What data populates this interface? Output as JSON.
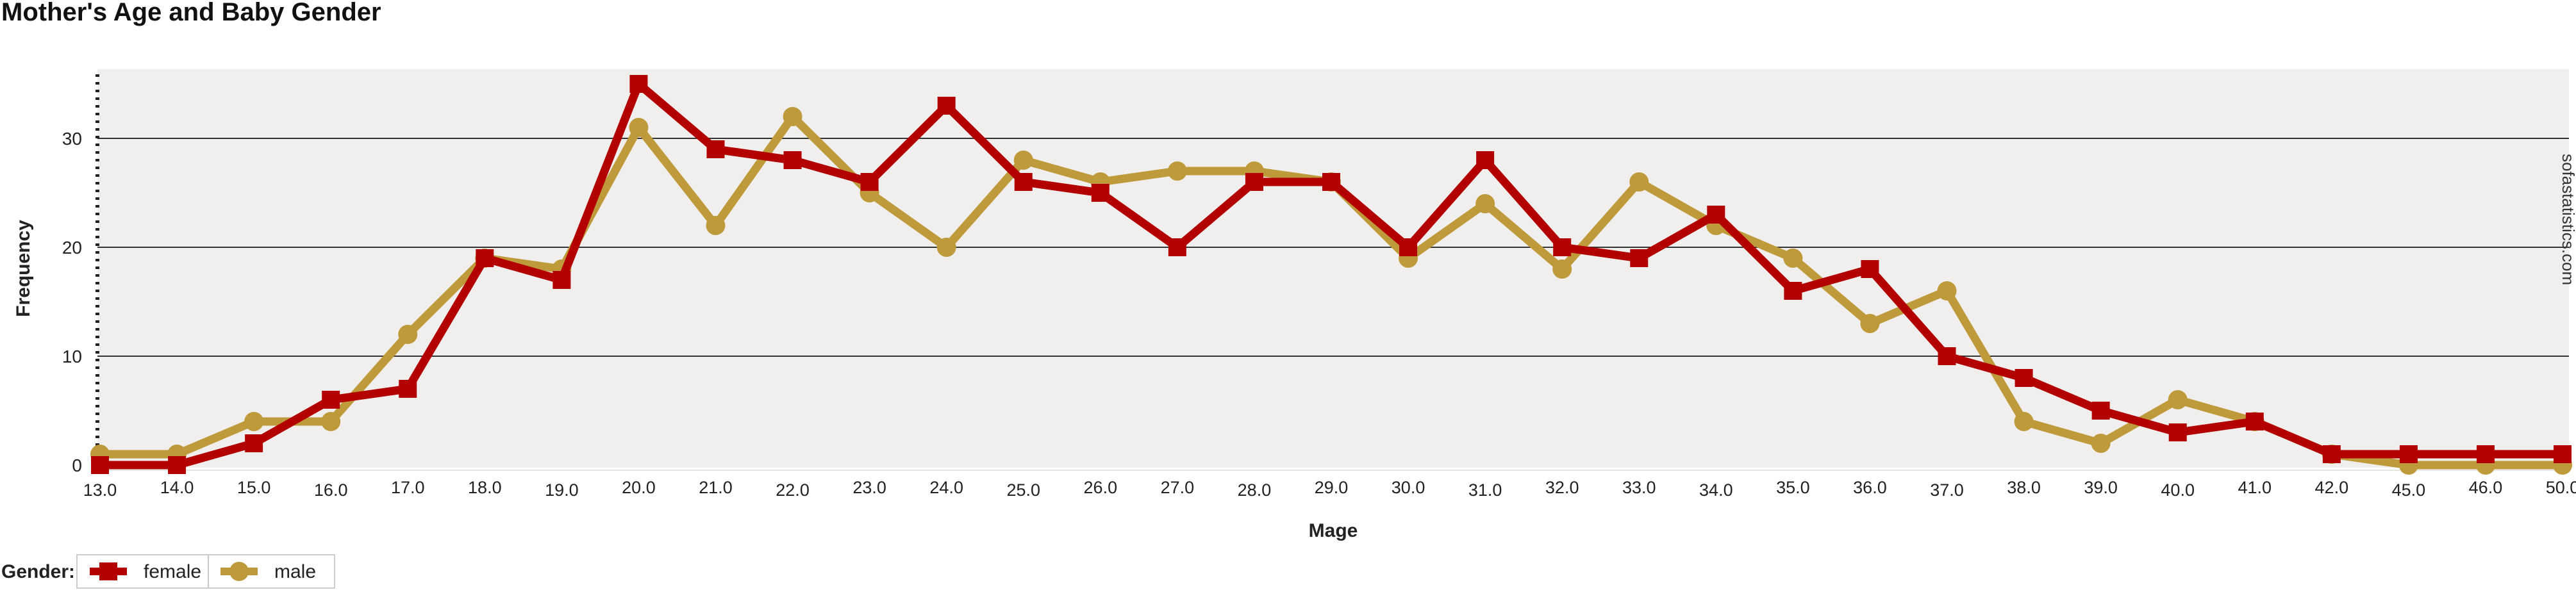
{
  "chart_data": {
    "type": "line",
    "title": "Mother's Age and Baby Gender",
    "xlabel": "Mage",
    "ylabel": "Frequency",
    "categories": [
      "13.0",
      "14.0",
      "15.0",
      "16.0",
      "17.0",
      "18.0",
      "19.0",
      "20.0",
      "21.0",
      "22.0",
      "23.0",
      "24.0",
      "25.0",
      "26.0",
      "27.0",
      "28.0",
      "29.0",
      "30.0",
      "31.0",
      "32.0",
      "33.0",
      "34.0",
      "35.0",
      "36.0",
      "37.0",
      "38.0",
      "39.0",
      "40.0",
      "41.0",
      "42.0",
      "45.0",
      "46.0",
      "50.0"
    ],
    "series": [
      {
        "name": "female",
        "color": "#b30000",
        "marker": "square",
        "values": [
          0,
          0,
          2,
          6,
          7,
          19,
          17,
          35,
          29,
          28,
          26,
          33,
          26,
          25,
          20,
          26,
          26,
          20,
          28,
          20,
          19,
          23,
          16,
          18,
          10,
          8,
          5,
          3,
          4,
          1,
          1,
          1,
          1
        ]
      },
      {
        "name": "male",
        "color": "#bf9a3a",
        "marker": "circle",
        "values": [
          1,
          1,
          4,
          4,
          12,
          19,
          18,
          31,
          22,
          32,
          25,
          20,
          28,
          26,
          27,
          27,
          26,
          19,
          24,
          18,
          26,
          22,
          19,
          13,
          16,
          4,
          2,
          6,
          4,
          1,
          0,
          0,
          0
        ]
      }
    ],
    "yticks": [
      0,
      10,
      20,
      30
    ],
    "ylim": [
      0,
      38
    ],
    "grid": true,
    "legend": {
      "title": "Gender:",
      "placement": "bottom-left"
    },
    "watermark": "sofastatistics.com"
  }
}
